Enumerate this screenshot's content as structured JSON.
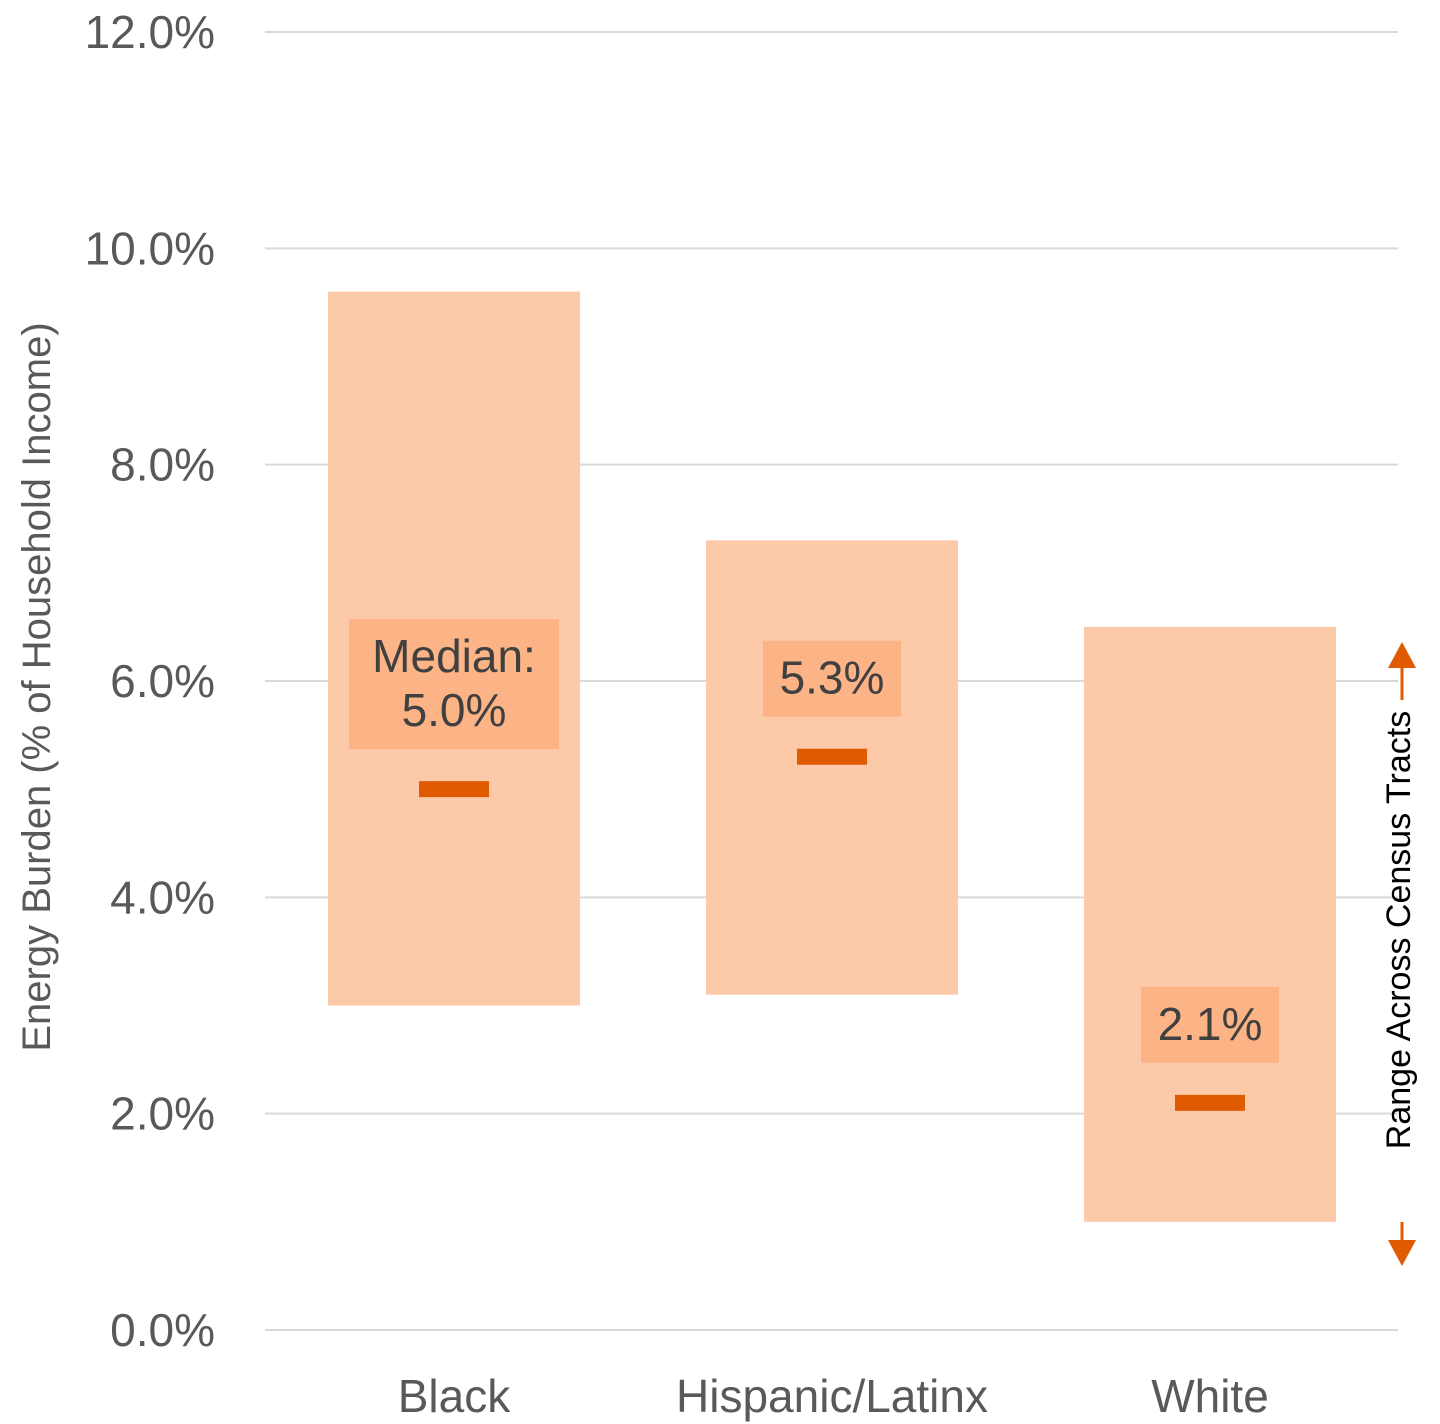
{
  "colors": {
    "range_fill": "#fdcaa9",
    "label_box_fill": "#fcb386",
    "median_mark": "#e05a00",
    "grid": "#d9d9d9",
    "axis_text": "#595959",
    "label_text": "#404040",
    "legend_arrow": "#e05a00",
    "legend_text": "#000000"
  },
  "chart_data": {
    "type": "range-bar",
    "ylabel": "Energy Burden (% of Household Income)",
    "ylim": [
      0,
      12
    ],
    "yticks": [
      0,
      2,
      4,
      6,
      8,
      10,
      12
    ],
    "ytick_labels": [
      "0.0%",
      "2.0%",
      "4.0%",
      "6.0%",
      "8.0%",
      "10.0%",
      "12.0%"
    ],
    "grid": true,
    "categories": [
      "Black",
      "Hispanic/Latinx",
      "White"
    ],
    "range_low": [
      3.0,
      3.1,
      1.0
    ],
    "range_high": [
      9.6,
      7.3,
      6.5
    ],
    "median": [
      5.0,
      5.3,
      2.1
    ],
    "median_labels": [
      [
        "Median:",
        "5.0%"
      ],
      [
        "5.3%"
      ],
      [
        "2.1%"
      ]
    ],
    "legend": {
      "label": "Range Across Census Tracts",
      "placement": "right"
    }
  }
}
